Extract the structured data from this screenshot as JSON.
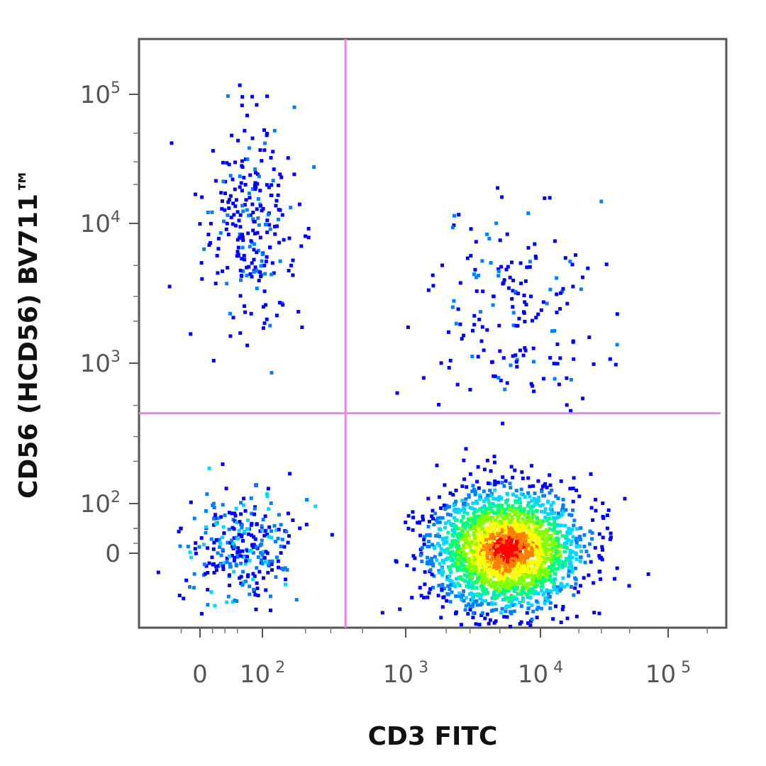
{
  "chart_data": {
    "type": "scatter",
    "style": "pseudocolor density dot plot (flow cytometry)",
    "xlabel": "CD3 FITC",
    "ylabel": "CD56 (HCD56) BV711™",
    "x_scale": "biexponential",
    "y_scale": "biexponential",
    "xlim": [
      -40,
      250000
    ],
    "ylim": [
      -70,
      200000
    ],
    "x_ticks": [
      {
        "value": 0,
        "base": "0",
        "exp": ""
      },
      {
        "value": 100,
        "base": "10",
        "exp": "2"
      },
      {
        "value": 1000,
        "base": "10",
        "exp": "3"
      },
      {
        "value": 10000,
        "base": "10",
        "exp": "4"
      },
      {
        "value": 100000,
        "base": "10",
        "exp": "5"
      }
    ],
    "y_ticks": [
      {
        "value": 0,
        "base": "0",
        "exp": ""
      },
      {
        "value": 100,
        "base": "10",
        "exp": "2"
      },
      {
        "value": 1000,
        "base": "10",
        "exp": "3"
      },
      {
        "value": 10000,
        "base": "10",
        "exp": "4"
      },
      {
        "value": 100000,
        "base": "10",
        "exp": "5"
      }
    ],
    "quadrant_gate": {
      "x": 380,
      "y": 440,
      "color": "#ee82ee"
    },
    "density_colors": [
      "#0000ff",
      "#0080ff",
      "#00d8ff",
      "#00ff80",
      "#80ff00",
      "#ffff00",
      "#ff8000",
      "#ff0000"
    ],
    "populations": [
      {
        "quadrant": "upper-left",
        "x_center": 75,
        "y_center": 10000,
        "relative_density": "medium"
      },
      {
        "quadrant": "lower-left",
        "x_center": 60,
        "y_center": 20,
        "relative_density": "medium"
      },
      {
        "quadrant": "upper-right",
        "x_center": 6000,
        "y_center": 2500,
        "relative_density": "low"
      },
      {
        "quadrant": "lower-right",
        "x_center": 5500,
        "y_center": 10,
        "relative_density": "high"
      }
    ],
    "grid": false,
    "legend": "none"
  }
}
